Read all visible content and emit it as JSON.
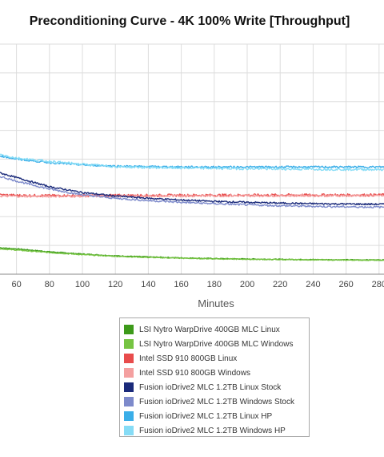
{
  "chart_data": {
    "type": "line",
    "title": "Preconditioning Curve - 4K 100% Write [Throughput]",
    "xlabel": "Minutes",
    "ylabel": "",
    "xlim": [
      50,
      283
    ],
    "ylim": [
      0,
      200
    ],
    "xticks": [
      60,
      80,
      100,
      120,
      140,
      160,
      180,
      200,
      220,
      240,
      260,
      280
    ],
    "yticks": [
      0,
      25,
      50,
      75,
      100,
      125,
      150,
      175,
      200
    ],
    "grid": true,
    "legend_position": "bottom",
    "series": [
      {
        "name": "LSI Nytro WarpDrive 400GB MLC Linux",
        "color": "#3d9a1a",
        "x": [
          50,
          60,
          80,
          100,
          120,
          140,
          160,
          180,
          200,
          220,
          240,
          260,
          283
        ],
        "y": [
          23,
          22,
          19.5,
          17.5,
          16,
          15,
          14.2,
          13.6,
          13.2,
          12.9,
          12.7,
          12.5,
          12.4
        ]
      },
      {
        "name": "LSI Nytro WarpDrive 400GB MLC Windows",
        "color": "#76c442",
        "x": [
          50,
          60,
          80,
          100,
          120,
          140,
          160,
          180,
          200,
          220,
          240,
          260,
          283
        ],
        "y": [
          22,
          21,
          18.8,
          17,
          15.6,
          14.6,
          13.9,
          13.4,
          13,
          12.7,
          12.5,
          12.3,
          12.2
        ]
      },
      {
        "name": "Intel SSD 910 800GB Linux",
        "color": "#e84c4c",
        "x": [
          50,
          60,
          80,
          100,
          120,
          140,
          160,
          180,
          200,
          220,
          240,
          260,
          283
        ],
        "y": [
          69,
          68.5,
          68.3,
          68.3,
          68.5,
          68.5,
          68.6,
          68.7,
          68.7,
          68.8,
          68.8,
          68.8,
          68.9
        ]
      },
      {
        "name": "Intel SSD 910 800GB Windows",
        "color": "#f4a0a0",
        "x": [
          50,
          60,
          80,
          100,
          120,
          140,
          160,
          180,
          200,
          220,
          240,
          260,
          283
        ],
        "y": [
          68,
          67.8,
          67.8,
          67.9,
          68,
          68,
          68.1,
          68.2,
          68.2,
          68.3,
          68.3,
          68.3,
          68.4
        ]
      },
      {
        "name": "Fusion ioDrive2 MLC 1.2TB Linux Stock",
        "color": "#1a2a7a",
        "x": [
          50,
          60,
          80,
          100,
          120,
          140,
          160,
          180,
          200,
          220,
          240,
          260,
          283
        ],
        "y": [
          88,
          84,
          76,
          71,
          68,
          66,
          64.5,
          63.3,
          62.5,
          61.8,
          61.3,
          61,
          60.8
        ]
      },
      {
        "name": "Fusion ioDrive2 MLC 1.2TB Windows Stock",
        "color": "#7d8acb",
        "x": [
          50,
          60,
          80,
          100,
          120,
          140,
          160,
          180,
          200,
          220,
          240,
          260,
          283
        ],
        "y": [
          85,
          81,
          74,
          69,
          66,
          64,
          62.5,
          61.3,
          60.3,
          59.5,
          59,
          58.6,
          58.3
        ]
      },
      {
        "name": "Fusion ioDrive2 MLC 1.2TB Linux HP",
        "color": "#3aaee8",
        "x": [
          50,
          60,
          80,
          100,
          120,
          140,
          160,
          180,
          200,
          220,
          240,
          260,
          283
        ],
        "y": [
          103,
          100,
          97,
          95,
          94,
          93.5,
          93.3,
          93.2,
          93.2,
          93.2,
          93.2,
          93.2,
          93.2
        ]
      },
      {
        "name": "Fusion ioDrive2 MLC 1.2TB Windows HP",
        "color": "#86dcf6",
        "x": [
          50,
          60,
          80,
          100,
          120,
          140,
          160,
          180,
          200,
          220,
          240,
          260,
          283
        ],
        "y": [
          104,
          101,
          98,
          95.5,
          93.5,
          92.8,
          92.3,
          92,
          91.7,
          91.5,
          91.3,
          91.1,
          91
        ]
      }
    ]
  }
}
